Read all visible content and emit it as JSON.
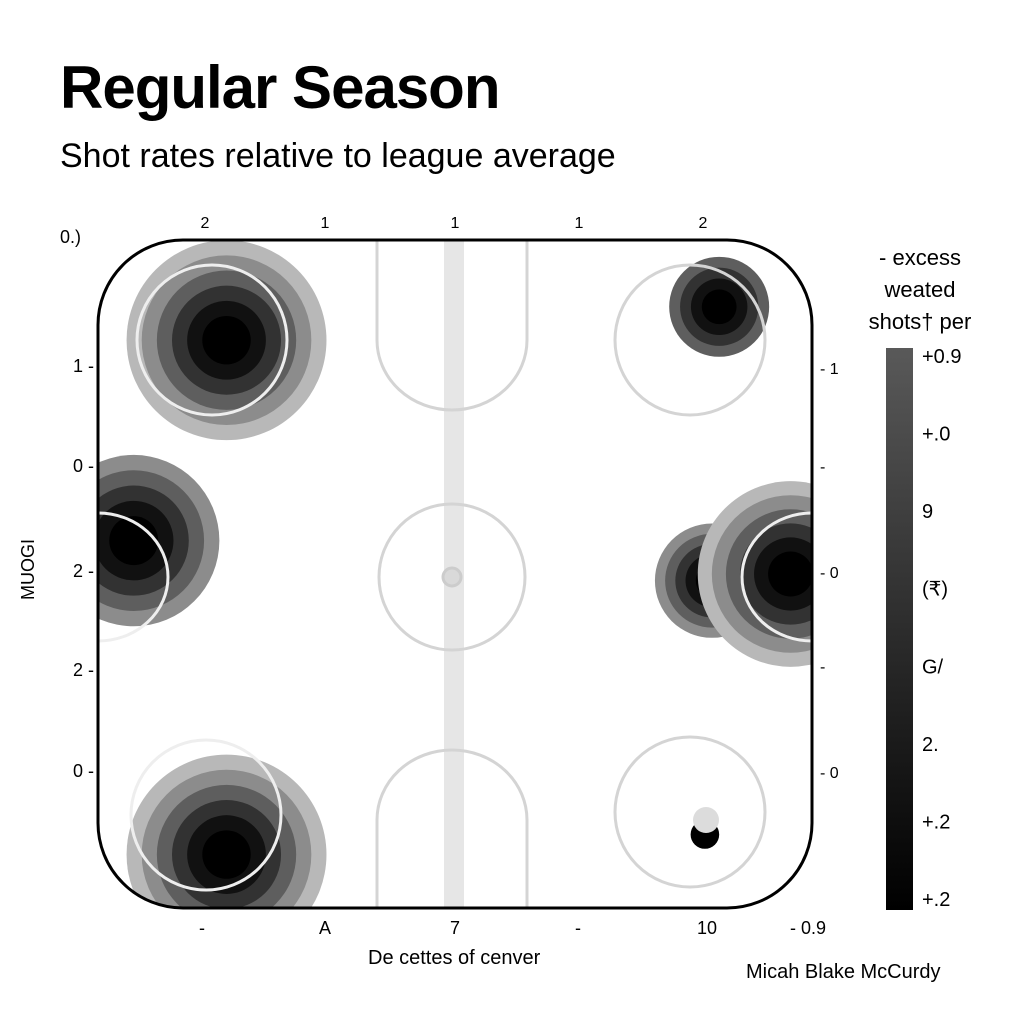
{
  "title": "Regular Season",
  "subtitle": "Shot rates relative to league average",
  "corner_label": "0.)",
  "credit": "Micah Blake McCurdy",
  "chart_data": {
    "type": "heatmap",
    "title": "Regular Season",
    "subtitle": "Shot rates relative to league average",
    "xlabel": "De cettes of cenver",
    "ylabel": "MUOGI",
    "x_ticks_top": [
      "2",
      "1",
      "1",
      "1",
      "2"
    ],
    "x_ticks_bottom": [
      "-",
      "A",
      "7",
      "-",
      "10",
      "- 0.9"
    ],
    "y_ticks_left": [
      "1 -",
      "0 -",
      "2 -",
      "2 -",
      "0 -"
    ],
    "y_ticks_right": [
      "- 1",
      "-",
      "- 0",
      "-",
      "- 0"
    ],
    "legend": {
      "title_lines": [
        "- excess",
        "weated",
        "shots† per"
      ],
      "tick_labels": [
        "+0.9",
        "+.0",
        "9",
        "(₹)",
        "G/",
        "2.",
        "+.2",
        "+.2"
      ],
      "placement": "right",
      "color_from": "#595959",
      "color_to": "#000000"
    },
    "hotspots": [
      {
        "x": 0.18,
        "y": 0.15,
        "intensity": 1.0,
        "spread": 0.14
      },
      {
        "x": 0.05,
        "y": 0.45,
        "intensity": 0.85,
        "spread": 0.12
      },
      {
        "x": 0.18,
        "y": 0.92,
        "intensity": 1.0,
        "spread": 0.14
      },
      {
        "x": 0.87,
        "y": 0.1,
        "intensity": 0.7,
        "spread": 0.07
      },
      {
        "x": 0.86,
        "y": 0.51,
        "intensity": 0.8,
        "spread": 0.08
      },
      {
        "x": 0.97,
        "y": 0.5,
        "intensity": 1.0,
        "spread": 0.13
      },
      {
        "x": 0.85,
        "y": 0.89,
        "intensity": 0.15,
        "spread": 0.02
      }
    ]
  }
}
